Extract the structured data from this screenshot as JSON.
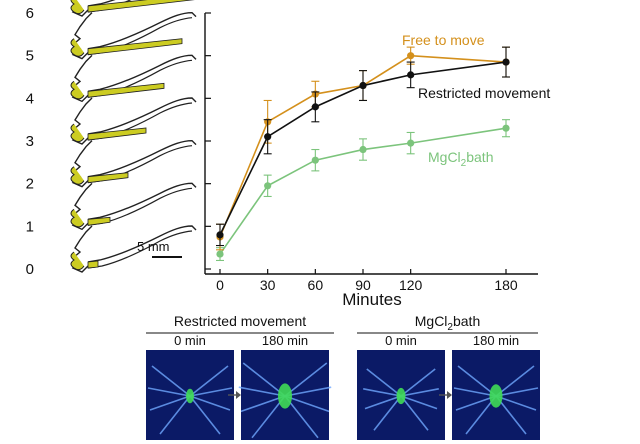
{
  "chart_data": {
    "type": "line",
    "x": [
      0,
      30,
      60,
      90,
      120,
      180
    ],
    "xticklabels": [
      "0",
      "30",
      "60",
      "90",
      "120",
      "180"
    ],
    "xlabel": "Minutes",
    "ylabel": "",
    "yticklabels": [
      "0",
      "1",
      "2",
      "3",
      "4",
      "5",
      "6"
    ],
    "ylim": [
      0,
      6
    ],
    "xlim": [
      -5,
      195
    ],
    "grid": false,
    "series": [
      {
        "name": "Free to move",
        "color": "#d4901c",
        "values": [
          0.75,
          3.45,
          4.1,
          4.3,
          5.0,
          4.85
        ],
        "errors": [
          0.3,
          0.5,
          0.3,
          0.35,
          0.2,
          0.35
        ]
      },
      {
        "name": "Restricted movement",
        "color": "#111111",
        "values": [
          0.8,
          3.1,
          3.8,
          4.3,
          4.55,
          4.85
        ],
        "errors": [
          0.25,
          0.4,
          0.35,
          0.35,
          0.3,
          0.35
        ]
      },
      {
        "name": "MgCl2bath",
        "name_main": "MgCl",
        "name_sub": "2",
        "name_rest": "bath",
        "color": "#7cc47c",
        "values": [
          0.35,
          1.95,
          2.55,
          2.8,
          2.95,
          3.3
        ],
        "errors": [
          0.15,
          0.25,
          0.25,
          0.25,
          0.25,
          0.2
        ]
      }
    ]
  },
  "scale_bar": {
    "label": "5 mm"
  },
  "panels": [
    {
      "title": "Restricted movement",
      "times": [
        "0 min",
        "180 min"
      ]
    },
    {
      "title_main": "MgCl",
      "title_sub": "2",
      "title_rest": "bath",
      "times": [
        "0 min",
        "180 min"
      ]
    }
  ],
  "colors": {
    "leg_fill": "#cccc22",
    "image_bg": "#0b1a66",
    "spider": "#3fdc55"
  }
}
